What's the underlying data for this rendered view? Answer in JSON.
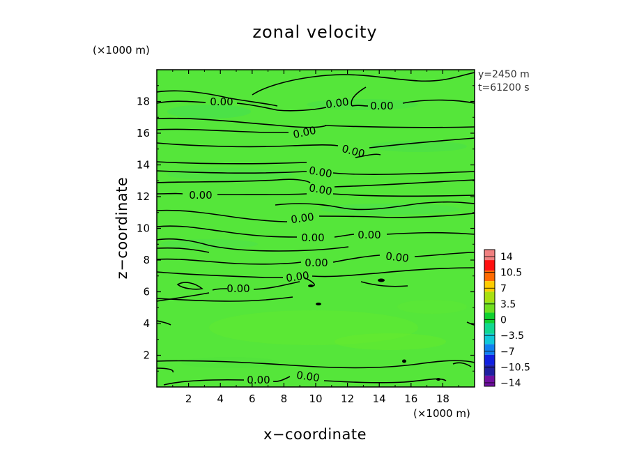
{
  "chart_data": {
    "type": "heatmap",
    "title": "zonal velocity",
    "xlabel": "x−coordinate",
    "ylabel": "z−coordinate",
    "x_unit": "(×1000 m)",
    "y_unit": "(×1000 m)",
    "xlim": [
      0,
      20
    ],
    "ylim": [
      0,
      20
    ],
    "x_ticks": [
      2,
      4,
      6,
      8,
      10,
      12,
      14,
      16,
      18
    ],
    "y_ticks": [
      2,
      4,
      6,
      8,
      10,
      12,
      14,
      16,
      18
    ],
    "annotations": [
      "y=2450 m",
      "t=61200 s"
    ],
    "contour_label": "0.00",
    "colorbar": {
      "labels": [
        "14",
        "10.5",
        "7",
        "3.5",
        "0",
        "−3.5",
        "−7",
        "−10.5",
        "−14"
      ],
      "colors": [
        "#f08080",
        "#ff1010",
        "#ff6a00",
        "#ffcc00",
        "#a8e010",
        "#70e020",
        "#10d030",
        "#10d890",
        "#10c8d8",
        "#1080f0",
        "#1020e0",
        "#2020a0",
        "#7010a0"
      ]
    },
    "field": {
      "dominant_color": "#55e63a",
      "value_range_shown": [
        -3.5,
        3.5
      ]
    }
  }
}
